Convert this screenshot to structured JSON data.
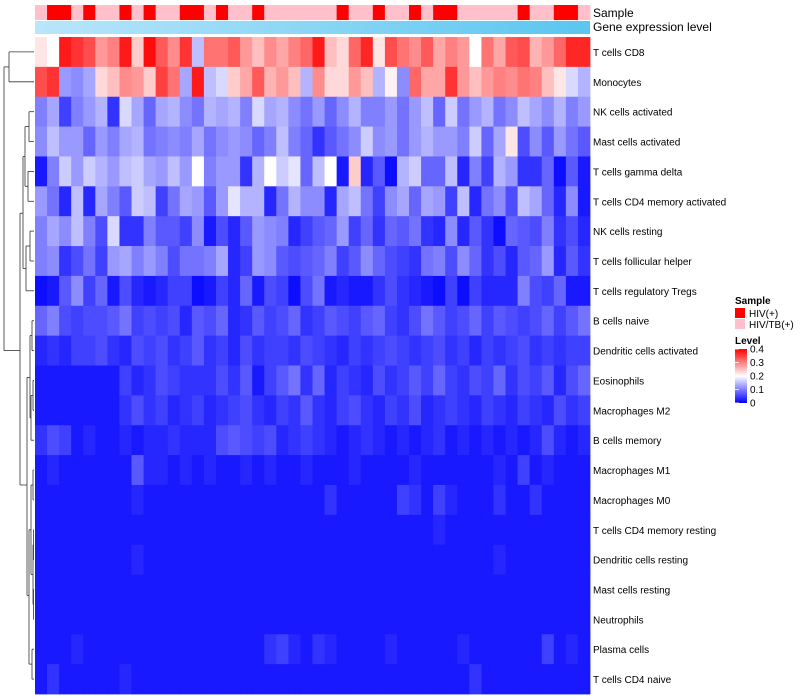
{
  "chart_data": {
    "type": "heatmap",
    "annotation_tracks": [
      {
        "name": "Sample",
        "label": "Sample"
      },
      {
        "name": "Gene expression level",
        "label": "Gene expression level"
      }
    ],
    "rows": [
      "T cells CD8",
      "Monocytes",
      "NK cells activated",
      "Mast cells activated",
      "T cells gamma delta",
      "T cells CD4 memory activated",
      "NK cells resting",
      "T cells follicular helper",
      "T cells regulatory  Tregs",
      "B cells naive",
      "Dendritic cells activated",
      "Eosinophils",
      "Macrophages M2",
      "B cells memory",
      "Macrophages M1",
      "Macrophages M0",
      "T cells CD4 memory resting",
      "Dendritic cells resting",
      "Mast cells resting",
      "Neutrophils",
      "Plasma cells",
      "T cells CD4 naive"
    ],
    "n_columns": 46,
    "sample_groups": [
      1,
      0,
      0,
      1,
      0,
      1,
      1,
      0,
      1,
      0,
      1,
      1,
      0,
      0,
      1,
      0,
      1,
      1,
      0,
      1,
      1,
      1,
      1,
      1,
      1,
      0,
      1,
      1,
      0,
      1,
      1,
      0,
      1,
      0,
      0,
      1,
      1,
      1,
      1,
      1,
      0,
      1,
      1,
      0,
      0,
      1
    ],
    "values": [
      [
        0.22,
        0.2,
        0.38,
        0.36,
        0.34,
        0.28,
        0.3,
        0.38,
        0.24,
        0.39,
        0.33,
        0.29,
        0.36,
        0.15,
        0.31,
        0.31,
        0.33,
        0.28,
        0.25,
        0.29,
        0.27,
        0.3,
        0.32,
        0.38,
        0.25,
        0.23,
        0.32,
        0.37,
        0.22,
        0.34,
        0.31,
        0.29,
        0.33,
        0.27,
        0.3,
        0.28,
        0.2,
        0.31,
        0.27,
        0.33,
        0.34,
        0.26,
        0.28,
        0.32,
        0.37,
        0.37
      ],
      [
        0.34,
        0.36,
        0.12,
        0.11,
        0.13,
        0.23,
        0.25,
        0.29,
        0.28,
        0.24,
        0.35,
        0.31,
        0.13,
        0.38,
        0.15,
        0.17,
        0.24,
        0.27,
        0.33,
        0.26,
        0.28,
        0.25,
        0.14,
        0.29,
        0.23,
        0.23,
        0.28,
        0.25,
        0.14,
        0.21,
        0.11,
        0.32,
        0.27,
        0.27,
        0.36,
        0.28,
        0.25,
        0.28,
        0.3,
        0.29,
        0.31,
        0.3,
        0.25,
        0.22,
        0.17,
        0.14
      ],
      [
        0.1,
        0.13,
        0.05,
        0.1,
        0.12,
        0.14,
        0.04,
        0.17,
        0.13,
        0.08,
        0.13,
        0.14,
        0.11,
        0.09,
        0.14,
        0.13,
        0.14,
        0.1,
        0.17,
        0.13,
        0.14,
        0.11,
        0.09,
        0.12,
        0.08,
        0.11,
        0.14,
        0.1,
        0.1,
        0.12,
        0.09,
        0.12,
        0.15,
        0.08,
        0.16,
        0.09,
        0.12,
        0.14,
        0.09,
        0.11,
        0.15,
        0.13,
        0.11,
        0.14,
        0.1,
        0.12
      ],
      [
        0.11,
        0.15,
        0.12,
        0.12,
        0.08,
        0.12,
        0.1,
        0.13,
        0.14,
        0.09,
        0.1,
        0.11,
        0.1,
        0.13,
        0.09,
        0.11,
        0.12,
        0.11,
        0.08,
        0.1,
        0.15,
        0.1,
        0.08,
        0.04,
        0.07,
        0.09,
        0.11,
        0.16,
        0.11,
        0.12,
        0.09,
        0.12,
        0.14,
        0.12,
        0.12,
        0.1,
        0.16,
        0.08,
        0.13,
        0.22,
        0.06,
        0.11,
        0.07,
        0.12,
        0.09,
        0.07
      ],
      [
        0.02,
        0.1,
        0.16,
        0.12,
        0.16,
        0.14,
        0.12,
        0.15,
        0.16,
        0.13,
        0.12,
        0.15,
        0.12,
        0.2,
        0.1,
        0.12,
        0.12,
        0.04,
        0.14,
        0.2,
        0.16,
        0.18,
        0.08,
        0.15,
        0.2,
        0.02,
        0.24,
        0.03,
        0.07,
        0.01,
        0.14,
        0.16,
        0.08,
        0.08,
        0.15,
        0.03,
        0.1,
        0.05,
        0.14,
        0.12,
        0.04,
        0.04,
        0.08,
        0.01,
        0.07,
        0.02
      ],
      [
        0.12,
        0.09,
        0.03,
        0.15,
        0.03,
        0.13,
        0.1,
        0.07,
        0.16,
        0.15,
        0.05,
        0.09,
        0.13,
        0.12,
        0.07,
        0.12,
        0.18,
        0.14,
        0.14,
        0.03,
        0.09,
        0.14,
        0.11,
        0.11,
        0.03,
        0.13,
        0.15,
        0.09,
        0.05,
        0.11,
        0.13,
        0.08,
        0.13,
        0.12,
        0.05,
        0.15,
        0.03,
        0.09,
        0.11,
        0.06,
        0.15,
        0.13,
        0.08,
        0.03,
        0.11,
        0.02
      ],
      [
        0.1,
        0.13,
        0.11,
        0.15,
        0.1,
        0.06,
        0.17,
        0.04,
        0.04,
        0.1,
        0.07,
        0.07,
        0.05,
        0.11,
        0.02,
        0.06,
        0.03,
        0.07,
        0.12,
        0.11,
        0.1,
        0.03,
        0.05,
        0.07,
        0.08,
        0.12,
        0.05,
        0.08,
        0.04,
        0.08,
        0.07,
        0.09,
        0.04,
        0.03,
        0.11,
        0.03,
        0.07,
        0.04,
        0.01,
        0.08,
        0.07,
        0.06,
        0.1,
        0.04,
        0.06,
        0.03
      ],
      [
        0.1,
        0.11,
        0.04,
        0.06,
        0.09,
        0.05,
        0.12,
        0.13,
        0.1,
        0.12,
        0.1,
        0.06,
        0.09,
        0.09,
        0.1,
        0.13,
        0.03,
        0.05,
        0.12,
        0.11,
        0.07,
        0.06,
        0.07,
        0.08,
        0.1,
        0.05,
        0.07,
        0.11,
        0.08,
        0.06,
        0.05,
        0.04,
        0.09,
        0.1,
        0.06,
        0.11,
        0.08,
        0.04,
        0.06,
        0.03,
        0.07,
        0.08,
        0.12,
        0.03,
        0.07,
        0.04
      ],
      [
        0.01,
        0.02,
        0.07,
        0.11,
        0.05,
        0.08,
        0.02,
        0.06,
        0.03,
        0.02,
        0.03,
        0.05,
        0.05,
        0.01,
        0.02,
        0.05,
        0.03,
        0.08,
        0.02,
        0.06,
        0.05,
        0.01,
        0.06,
        0.09,
        0.02,
        0.03,
        0.02,
        0.02,
        0.04,
        0.06,
        0.04,
        0.03,
        0.02,
        0.01,
        0.05,
        0.01,
        0.05,
        0.03,
        0.03,
        0.03,
        0.1,
        0.06,
        0.05,
        0.08,
        0.02,
        0.02
      ],
      [
        0.08,
        0.1,
        0.06,
        0.05,
        0.06,
        0.06,
        0.07,
        0.09,
        0.05,
        0.06,
        0.05,
        0.06,
        0.03,
        0.07,
        0.06,
        0.08,
        0.03,
        0.04,
        0.07,
        0.05,
        0.06,
        0.08,
        0.04,
        0.05,
        0.07,
        0.06,
        0.05,
        0.07,
        0.08,
        0.05,
        0.04,
        0.06,
        0.09,
        0.07,
        0.05,
        0.06,
        0.08,
        0.05,
        0.07,
        0.06,
        0.05,
        0.06,
        0.08,
        0.05,
        0.07,
        0.09
      ],
      [
        0.03,
        0.04,
        0.03,
        0.05,
        0.05,
        0.06,
        0.04,
        0.03,
        0.06,
        0.05,
        0.06,
        0.04,
        0.05,
        0.07,
        0.04,
        0.05,
        0.03,
        0.06,
        0.04,
        0.05,
        0.05,
        0.04,
        0.06,
        0.05,
        0.04,
        0.03,
        0.05,
        0.04,
        0.05,
        0.06,
        0.05,
        0.04,
        0.05,
        0.06,
        0.04,
        0.05,
        0.03,
        0.05,
        0.04,
        0.05,
        0.06,
        0.04,
        0.05,
        0.04,
        0.05,
        0.05
      ],
      [
        0.02,
        0.02,
        0.02,
        0.02,
        0.02,
        0.02,
        0.02,
        0.05,
        0.03,
        0.04,
        0.06,
        0.05,
        0.04,
        0.04,
        0.04,
        0.06,
        0.04,
        0.07,
        0.02,
        0.05,
        0.07,
        0.09,
        0.04,
        0.08,
        0.03,
        0.05,
        0.04,
        0.03,
        0.06,
        0.04,
        0.05,
        0.07,
        0.05,
        0.08,
        0.05,
        0.04,
        0.06,
        0.05,
        0.08,
        0.04,
        0.06,
        0.05,
        0.07,
        0.03,
        0.06,
        0.08
      ],
      [
        0.02,
        0.02,
        0.02,
        0.02,
        0.02,
        0.02,
        0.02,
        0.04,
        0.06,
        0.04,
        0.05,
        0.03,
        0.04,
        0.05,
        0.03,
        0.04,
        0.05,
        0.06,
        0.04,
        0.03,
        0.05,
        0.04,
        0.07,
        0.04,
        0.03,
        0.05,
        0.06,
        0.04,
        0.03,
        0.05,
        0.04,
        0.06,
        0.03,
        0.04,
        0.05,
        0.04,
        0.03,
        0.05,
        0.04,
        0.03,
        0.05,
        0.04,
        0.03,
        0.06,
        0.04,
        0.05
      ],
      [
        0.04,
        0.06,
        0.05,
        0.02,
        0.03,
        0.02,
        0.02,
        0.03,
        0.02,
        0.03,
        0.03,
        0.04,
        0.03,
        0.03,
        0.03,
        0.06,
        0.07,
        0.06,
        0.05,
        0.06,
        0.03,
        0.04,
        0.05,
        0.04,
        0.03,
        0.02,
        0.03,
        0.04,
        0.03,
        0.02,
        0.03,
        0.02,
        0.03,
        0.04,
        0.02,
        0.03,
        0.02,
        0.03,
        0.02,
        0.03,
        0.02,
        0.03,
        0.06,
        0.03,
        0.02,
        0.03
      ],
      [
        0.02,
        0.03,
        0.02,
        0.02,
        0.02,
        0.02,
        0.02,
        0.02,
        0.07,
        0.03,
        0.03,
        0.02,
        0.03,
        0.02,
        0.03,
        0.02,
        0.02,
        0.03,
        0.02,
        0.03,
        0.02,
        0.02,
        0.03,
        0.02,
        0.02,
        0.02,
        0.03,
        0.02,
        0.02,
        0.02,
        0.02,
        0.03,
        0.02,
        0.02,
        0.02,
        0.02,
        0.02,
        0.02,
        0.03,
        0.02,
        0.05,
        0.02,
        0.03,
        0.02,
        0.02,
        0.02
      ],
      [
        0.02,
        0.02,
        0.02,
        0.02,
        0.02,
        0.02,
        0.02,
        0.02,
        0.03,
        0.02,
        0.02,
        0.02,
        0.02,
        0.02,
        0.02,
        0.02,
        0.02,
        0.02,
        0.02,
        0.02,
        0.02,
        0.02,
        0.02,
        0.02,
        0.04,
        0.02,
        0.02,
        0.02,
        0.02,
        0.02,
        0.05,
        0.04,
        0.02,
        0.05,
        0.03,
        0.02,
        0.02,
        0.02,
        0.04,
        0.02,
        0.02,
        0.04,
        0.02,
        0.02,
        0.02,
        0.02
      ],
      [
        0.02,
        0.02,
        0.02,
        0.02,
        0.02,
        0.02,
        0.02,
        0.02,
        0.02,
        0.02,
        0.02,
        0.02,
        0.02,
        0.02,
        0.02,
        0.02,
        0.02,
        0.02,
        0.02,
        0.02,
        0.02,
        0.02,
        0.02,
        0.02,
        0.02,
        0.02,
        0.02,
        0.02,
        0.02,
        0.02,
        0.02,
        0.02,
        0.02,
        0.03,
        0.02,
        0.02,
        0.02,
        0.02,
        0.02,
        0.02,
        0.02,
        0.02,
        0.02,
        0.02,
        0.02,
        0.02
      ],
      [
        0.02,
        0.02,
        0.02,
        0.02,
        0.02,
        0.02,
        0.02,
        0.02,
        0.03,
        0.02,
        0.02,
        0.02,
        0.02,
        0.02,
        0.02,
        0.02,
        0.02,
        0.02,
        0.02,
        0.02,
        0.02,
        0.02,
        0.02,
        0.02,
        0.02,
        0.02,
        0.02,
        0.02,
        0.02,
        0.02,
        0.02,
        0.02,
        0.02,
        0.02,
        0.02,
        0.02,
        0.02,
        0.02,
        0.03,
        0.02,
        0.02,
        0.02,
        0.02,
        0.02,
        0.02,
        0.02
      ],
      [
        0.02,
        0.02,
        0.02,
        0.02,
        0.02,
        0.02,
        0.02,
        0.02,
        0.02,
        0.02,
        0.02,
        0.02,
        0.02,
        0.02,
        0.02,
        0.02,
        0.02,
        0.02,
        0.02,
        0.02,
        0.02,
        0.02,
        0.02,
        0.02,
        0.02,
        0.02,
        0.02,
        0.02,
        0.02,
        0.02,
        0.02,
        0.02,
        0.02,
        0.02,
        0.02,
        0.02,
        0.02,
        0.02,
        0.02,
        0.02,
        0.02,
        0.02,
        0.02,
        0.02,
        0.02,
        0.02
      ],
      [
        0.02,
        0.02,
        0.02,
        0.02,
        0.02,
        0.02,
        0.02,
        0.02,
        0.02,
        0.02,
        0.02,
        0.02,
        0.02,
        0.02,
        0.02,
        0.02,
        0.02,
        0.02,
        0.02,
        0.02,
        0.02,
        0.02,
        0.02,
        0.02,
        0.02,
        0.02,
        0.02,
        0.02,
        0.02,
        0.02,
        0.02,
        0.02,
        0.02,
        0.02,
        0.02,
        0.02,
        0.02,
        0.02,
        0.02,
        0.02,
        0.02,
        0.02,
        0.02,
        0.02,
        0.02,
        0.02
      ],
      [
        0.02,
        0.02,
        0.02,
        0.03,
        0.02,
        0.02,
        0.02,
        0.02,
        0.02,
        0.02,
        0.02,
        0.02,
        0.02,
        0.02,
        0.02,
        0.02,
        0.02,
        0.02,
        0.02,
        0.04,
        0.05,
        0.03,
        0.02,
        0.04,
        0.03,
        0.02,
        0.02,
        0.02,
        0.02,
        0.03,
        0.02,
        0.02,
        0.02,
        0.02,
        0.02,
        0.03,
        0.02,
        0.02,
        0.02,
        0.02,
        0.02,
        0.02,
        0.05,
        0.02,
        0.03,
        0.02
      ],
      [
        0.02,
        0.04,
        0.02,
        0.02,
        0.02,
        0.02,
        0.02,
        0.03,
        0.02,
        0.02,
        0.02,
        0.02,
        0.02,
        0.02,
        0.02,
        0.02,
        0.02,
        0.02,
        0.02,
        0.02,
        0.02,
        0.02,
        0.02,
        0.02,
        0.02,
        0.02,
        0.02,
        0.02,
        0.02,
        0.02,
        0.02,
        0.02,
        0.02,
        0.02,
        0.02,
        0.02,
        0.04,
        0.02,
        0.02,
        0.02,
        0.02,
        0.02,
        0.02,
        0.02,
        0.02,
        0.02
      ]
    ],
    "legend": {
      "sample_title": "Sample",
      "sample_entries": [
        {
          "label": "HIV(+)",
          "color": "#ff0000"
        },
        {
          "label": "HIV/TB(+)",
          "color": "#ffc0cb"
        }
      ],
      "level_title": "Level",
      "level_ticks": [
        "0.4",
        "0.3",
        "0.2",
        "0.1",
        "0"
      ],
      "level_range": [
        0,
        0.4
      ],
      "position": "right"
    },
    "colors": {
      "low": "#0000ff",
      "mid": "#ffffff",
      "high": "#ff0000",
      "expr_track_start": "#b9e6fb",
      "expr_track_end": "#5bc6ef"
    }
  }
}
